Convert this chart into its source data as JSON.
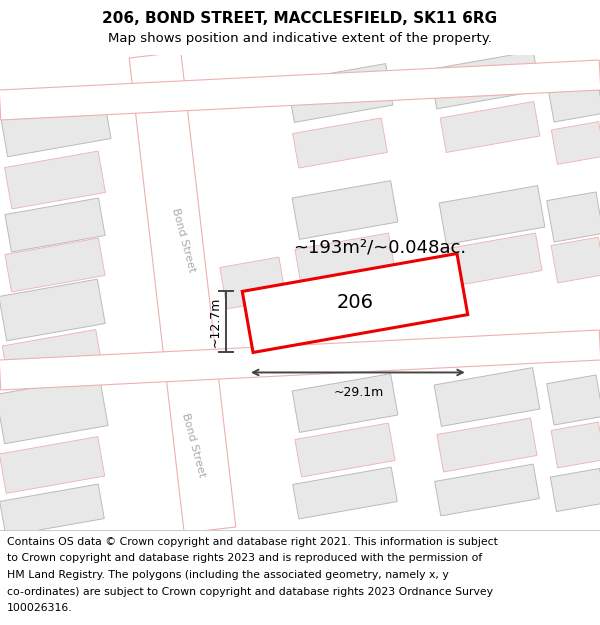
{
  "title": "206, BOND STREET, MACCLESFIELD, SK11 6RG",
  "subtitle": "Map shows position and indicative extent of the property.",
  "footer_lines": [
    "Contains OS data © Crown copyright and database right 2021. This information is subject",
    "to Crown copyright and database rights 2023 and is reproduced with the permission of",
    "HM Land Registry. The polygons (including the associated geometry, namely x, y",
    "co-ordinates) are subject to Crown copyright and database rights 2023 Ordnance Survey",
    "100026316."
  ],
  "map_bg": "#f2f2f2",
  "road_color": "#ffffff",
  "road_border_color": "#f0b0b0",
  "building_fill": "#e8e8e8",
  "building_border_gray": "#bbbbbb",
  "building_border_red": "#f0b0b0",
  "highlight_fill": "#ffffff",
  "highlight_border": "#ee0000",
  "highlight_label": "206",
  "area_text": "~193m²/~0.048ac.",
  "width_text": "~29.1m",
  "height_text": "~12.7m",
  "title_fontsize": 11,
  "subtitle_fontsize": 9.5,
  "label_fontsize": 14,
  "area_fontsize": 13,
  "dim_fontsize": 9,
  "road_label_fontsize": 8,
  "footer_fontsize": 7.8
}
